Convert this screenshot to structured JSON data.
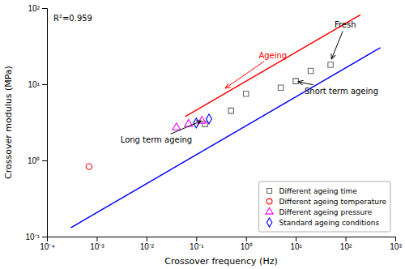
{
  "chart_data": {
    "type": "scatter",
    "log": true,
    "grid": false,
    "legend": "lower right",
    "xlabel": "Crossover frequency (Hz)",
    "ylabel": "Crossover modulus (MPa)",
    "xlim": [
      0.0001,
      1000
    ],
    "ylim": [
      0.1,
      100
    ],
    "xticks": [
      {
        "value": 0.0001,
        "label": "10⁻⁴"
      },
      {
        "value": 0.001,
        "label": "10⁻³"
      },
      {
        "value": 0.01,
        "label": "10⁻²"
      },
      {
        "value": 0.1,
        "label": "10⁻¹"
      },
      {
        "value": 1,
        "label": "10⁰"
      },
      {
        "value": 10,
        "label": "10¹"
      },
      {
        "value": 100,
        "label": "10²"
      },
      {
        "value": 1000,
        "label": "10³"
      }
    ],
    "yticks": [
      {
        "value": 0.1,
        "label": "10⁻¹"
      },
      {
        "value": 1,
        "label": "10⁰"
      },
      {
        "value": 10,
        "label": "10¹"
      },
      {
        "value": 100,
        "label": "10²"
      }
    ],
    "series": [
      {
        "type": "line",
        "color": "blue",
        "x": [
          0.0003,
          500
        ],
        "values": [
          0.13071,
          30.2419
        ]
      },
      {
        "type": "line",
        "color": "red",
        "x": [
          0.06,
          200
        ],
        "values": [
          3.7644,
          82.109
        ]
      },
      {
        "type": "scatter",
        "name": "Different ageing time",
        "color": "dimgray",
        "marker": "square",
        "x": [
          0.15,
          0.5,
          1.0,
          5.0,
          10.0,
          20.0,
          50.0
        ],
        "values": [
          3.0,
          4.5,
          7.5,
          9.0,
          11.0,
          15.0,
          18.0
        ]
      },
      {
        "type": "scatter",
        "name": "Different ageing temperature",
        "color": "red",
        "marker": "circle",
        "x": [
          0.0007
        ],
        "values": [
          0.83
        ]
      },
      {
        "type": "scatter",
        "name": "Different ageing pressure",
        "color": "magenta",
        "marker": "triangle",
        "x": [
          0.04,
          0.07,
          0.13
        ],
        "values": [
          2.7,
          3.0,
          3.3
        ]
      },
      {
        "type": "scatter",
        "name": "Standard ageing conditions",
        "color": "blue",
        "marker": "diamond",
        "x": [
          0.1,
          0.18
        ],
        "values": [
          3.1,
          3.5
        ]
      }
    ],
    "annotations": [
      {
        "text": "Fresh",
        "xy": [
          50.0,
          20.0
        ],
        "xytext": [
          60.0,
          55.0
        ]
      },
      {
        "text": "Short term ageing",
        "xy": [
          10.0,
          11.0
        ],
        "xytext": [
          15.0,
          7.5
        ]
      },
      {
        "text": "Long term ageing",
        "xy": [
          0.14,
          3.4
        ],
        "xytext": [
          0.003,
          1.7
        ]
      },
      {
        "text": "Ageing",
        "xy": [
          0.35,
          8.5
        ],
        "xytext": [
          1.8,
          22.0
        ],
        "color": "red"
      },
      {
        "text": "R²=0.959"
      }
    ]
  }
}
